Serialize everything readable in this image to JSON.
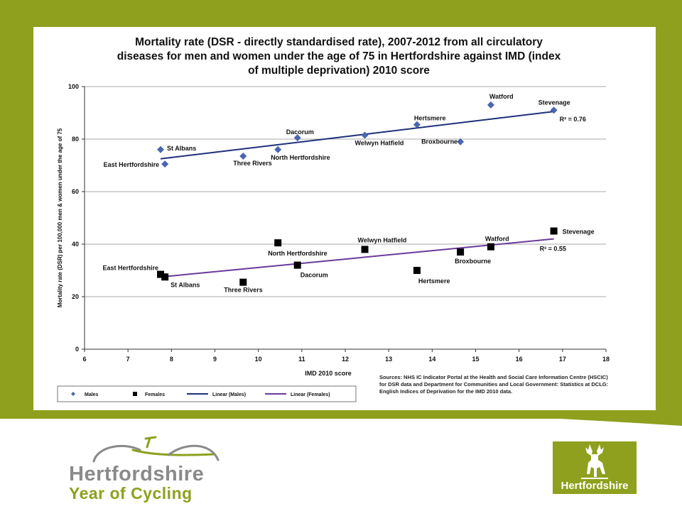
{
  "theme": {
    "frame_color": "#8ea01e",
    "males_color": "#4a66b0",
    "females_color": "#000000",
    "males_line_color": "#1f2f7a",
    "females_line_color": "#6a3a9a",
    "grid_color": "#8c8c8c"
  },
  "chart_data": {
    "type": "scatter",
    "title_lines": [
      "Mortality rate (DSR - directly standardised rate), 2007-2012 from all circulatory",
      "diseases for men and women under the age of 75 in Hertfordshire against IMD (index",
      "of multiple deprivation) 2010 score"
    ],
    "xlabel": "IMD 2010 score",
    "ylabel": "Mortality rate (DSR) per 100,000 men & women under the age of 75",
    "xlim": [
      6,
      18
    ],
    "ylim": [
      0,
      100
    ],
    "xticks": [
      6,
      7,
      8,
      9,
      10,
      11,
      12,
      13,
      14,
      15,
      16,
      17,
      18
    ],
    "yticks": [
      0,
      20,
      40,
      60,
      80,
      100
    ],
    "grid": "horizontal",
    "legend_position": "bottom-left",
    "legend": [
      "Males",
      "Females",
      "Linear (Males)",
      "Linear (Females)"
    ],
    "series": [
      {
        "name": "Males",
        "marker": "diamond",
        "points": [
          {
            "label": "St Albans",
            "x": 7.75,
            "y": 76
          },
          {
            "label": "East Hertfordshire",
            "x": 7.85,
            "y": 70.5
          },
          {
            "label": "Three Rivers",
            "x": 9.65,
            "y": 73.5
          },
          {
            "label": "Dacorum",
            "x": 10.9,
            "y": 80.5
          },
          {
            "label": "North Hertfordshire",
            "x": 10.45,
            "y": 76
          },
          {
            "label": "Welwyn Hatfield",
            "x": 12.45,
            "y": 81.5
          },
          {
            "label": "Hertsmere",
            "x": 13.65,
            "y": 85.5
          },
          {
            "label": "Broxbourne",
            "x": 14.65,
            "y": 79
          },
          {
            "label": "Watford",
            "x": 15.35,
            "y": 93
          },
          {
            "label": "Stevenage",
            "x": 16.8,
            "y": 91
          }
        ],
        "trendline": {
          "name": "Linear (Males)",
          "x": [
            7.75,
            16.8
          ],
          "y": [
            72.5,
            90.5
          ],
          "r2": "R² = 0.76"
        }
      },
      {
        "name": "Females",
        "marker": "square",
        "points": [
          {
            "label": "East Hertfordshire",
            "x": 7.75,
            "y": 28.5
          },
          {
            "label": "St Albans",
            "x": 7.85,
            "y": 27.5
          },
          {
            "label": "Three Rivers",
            "x": 9.65,
            "y": 25.5
          },
          {
            "label": "North Hertfordshire",
            "x": 10.45,
            "y": 40.5
          },
          {
            "label": "Dacorum",
            "x": 10.9,
            "y": 32
          },
          {
            "label": "Welwyn Hatfield",
            "x": 12.45,
            "y": 38
          },
          {
            "label": "Hertsmere",
            "x": 13.65,
            "y": 30
          },
          {
            "label": "Broxbourne",
            "x": 14.65,
            "y": 37
          },
          {
            "label": "Watford",
            "x": 15.35,
            "y": 39
          },
          {
            "label": "Stevenage",
            "x": 16.8,
            "y": 45
          }
        ],
        "trendline": {
          "name": "Linear (Females)",
          "x": [
            7.75,
            16.8
          ],
          "y": [
            27.5,
            42
          ],
          "r2": "R² = 0.55"
        }
      }
    ]
  },
  "sources": {
    "lines": [
      "Sources: NHS IC Indicator Portal at the Health and Social Care Information Centre (HSCIC)",
      "for DSR data and Department for Communities and Local Government: Statistics at DCLG:",
      "English Indices of Deprivation for the IMD 2010 data."
    ]
  },
  "branding": {
    "logo_line1": "Hertfordshire",
    "logo_line2": "Year of Cycling",
    "crest_label": "Hertfordshire"
  }
}
